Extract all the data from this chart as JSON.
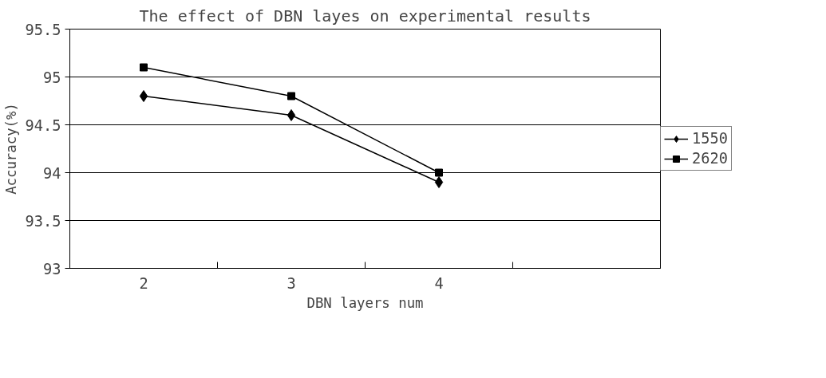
{
  "chart_data": {
    "type": "line",
    "title": "The effect of DBN layes on experimental results",
    "xlabel": "DBN layers num",
    "ylabel": "Accuracy(%)",
    "categories": [
      "2",
      "3",
      "4",
      null
    ],
    "series": [
      {
        "name": "1550",
        "color": "#000000",
        "marker": "diamond",
        "values": [
          94.8,
          94.6,
          93.9,
          null
        ]
      },
      {
        "name": "2620",
        "color": "#000000",
        "marker": "square",
        "values": [
          95.1,
          94.8,
          94.0,
          null
        ]
      }
    ],
    "ylim": [
      93,
      95.5
    ],
    "yticks": [
      93,
      {
        "value": 93.5,
        "label": "93.5"
      },
      94,
      {
        "value": 94.5,
        "label": "94.5"
      },
      95,
      {
        "value": 95.5,
        "label": "95.5"
      }
    ],
    "grid": "y",
    "legend": "right",
    "line_style": "solid"
  }
}
